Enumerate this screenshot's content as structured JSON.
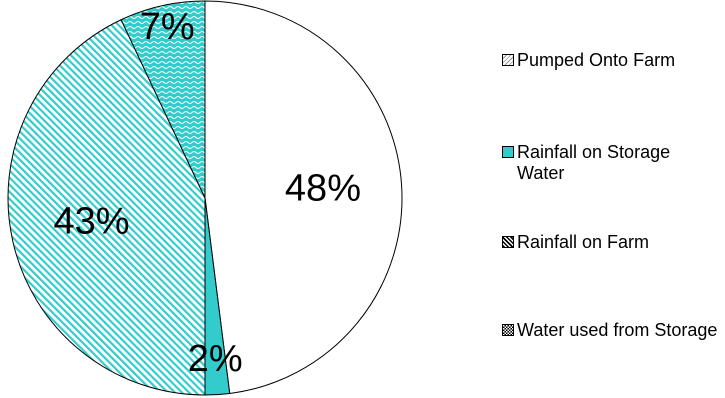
{
  "chart_data": {
    "type": "pie",
    "title": "",
    "legend_position": "right",
    "slices": [
      {
        "label": "Pumped Onto Farm",
        "value": 48,
        "display": "48%",
        "color": "#ffffff",
        "pattern": "plain"
      },
      {
        "label": "Rainfall on Storage Water",
        "value": 2,
        "display": "2%",
        "color": "#33cccc",
        "pattern": "solid"
      },
      {
        "label": "Rainfall on Farm",
        "value": 43,
        "display": "43%",
        "color": "#33cccc",
        "pattern": "diagonal-hatch"
      },
      {
        "label": "Water used from Storage",
        "value": 7,
        "display": "7%",
        "color": "#33cccc",
        "pattern": "wave"
      }
    ]
  },
  "legend": {
    "items": [
      {
        "label": "Pumped Onto Farm"
      },
      {
        "label": "Rainfall on Storage Water"
      },
      {
        "label": "Rainfall on Farm"
      },
      {
        "label": "Water used from Storage"
      }
    ]
  }
}
